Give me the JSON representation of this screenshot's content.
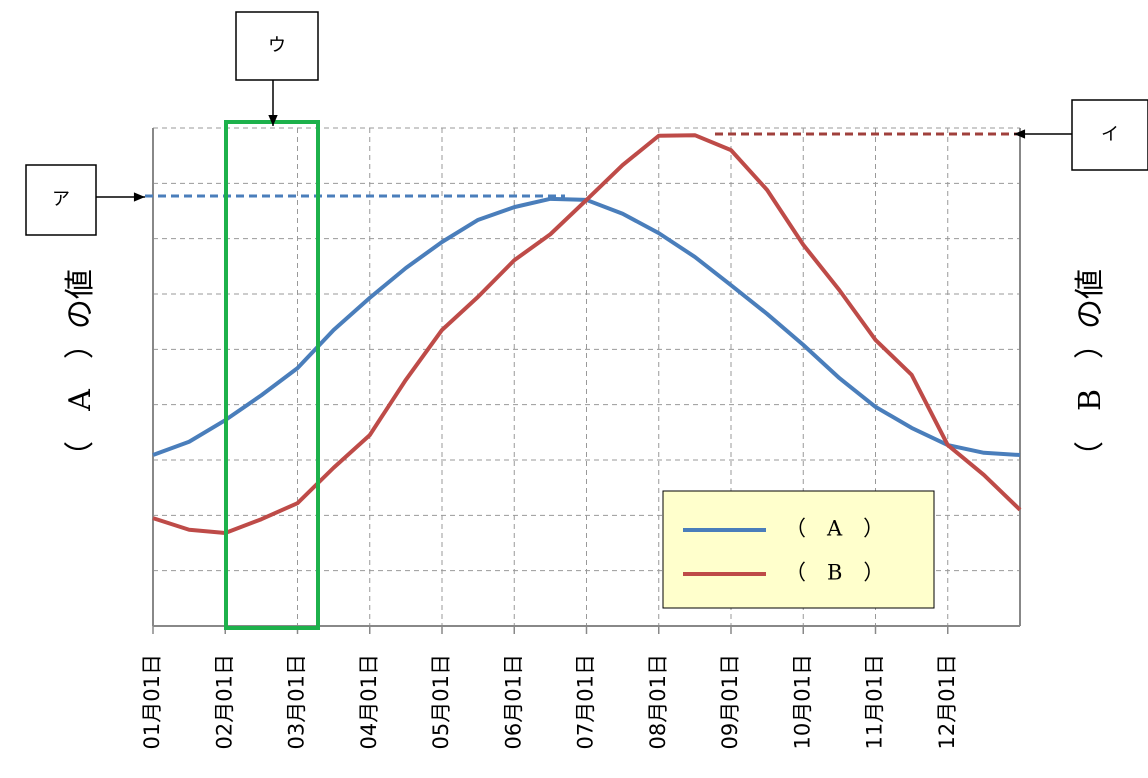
{
  "chart_data": {
    "type": "line",
    "y_label": "（　A　）の値",
    "y2_label": "（　B　）の値",
    "annotations": [
      "ア",
      "イ",
      "ウ"
    ],
    "categories": [
      "01月01日",
      null,
      "02月01日",
      null,
      "03月01日",
      null,
      "04月01日",
      null,
      "05月01日",
      null,
      "06月01日",
      null,
      "07月01日",
      null,
      "08月01日",
      null,
      "09月01日",
      null,
      "10月01日",
      null,
      "11月01日",
      null,
      "12月01日",
      null,
      null
    ],
    "ylim": [
      0,
      9
    ],
    "yticks": [
      0,
      1,
      2,
      3,
      4,
      5,
      6,
      7,
      8,
      9
    ],
    "grid": true,
    "series": [
      {
        "name": "（　A　）",
        "color": "#4a7ebb",
        "values": [
          3.09,
          3.33,
          3.72,
          4.17,
          4.66,
          5.35,
          5.93,
          6.47,
          6.94,
          7.34,
          7.57,
          7.72,
          7.7,
          7.45,
          7.1,
          6.67,
          6.16,
          5.64,
          5.08,
          4.48,
          3.96,
          3.58,
          3.27,
          3.13,
          3.09
        ]
      },
      {
        "name": "（　B　）",
        "color": "#be4b48",
        "values": [
          1.95,
          1.74,
          1.68,
          1.93,
          2.22,
          2.86,
          3.45,
          4.45,
          5.35,
          5.95,
          6.61,
          7.08,
          7.7,
          8.33,
          8.86,
          8.87,
          8.6,
          7.88,
          6.89,
          6.07,
          5.17,
          4.54,
          3.27,
          2.73,
          2.1
        ]
      }
    ]
  }
}
